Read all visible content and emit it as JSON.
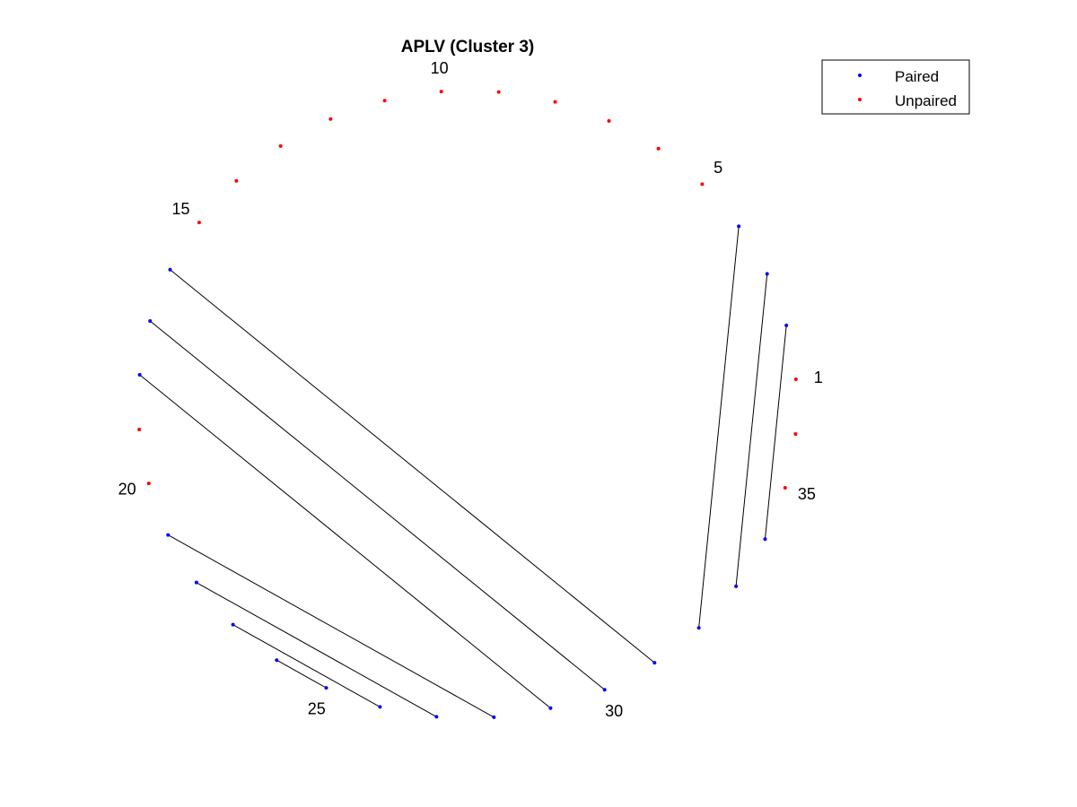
{
  "title": "APLV (Cluster 3)",
  "legend": {
    "placement": "top-right",
    "items": [
      {
        "label": "Paired",
        "color": "#0000ff"
      },
      {
        "label": "Unpaired",
        "color": "#ff0000"
      }
    ]
  },
  "chart_data": {
    "type": "circular-pairing",
    "n_points": 36,
    "labeled_positions": [
      1,
      5,
      10,
      15,
      20,
      25,
      30,
      35
    ],
    "pairs": [
      [
        2,
        34
      ],
      [
        3,
        33
      ],
      [
        4,
        32
      ],
      [
        16,
        31
      ],
      [
        17,
        30
      ],
      [
        18,
        29
      ],
      [
        21,
        28
      ],
      [
        22,
        27
      ],
      [
        23,
        26
      ],
      [
        24,
        25
      ]
    ]
  },
  "colors": {
    "paired": "#0000ff",
    "unpaired": "#ff0000",
    "line": "#000000"
  }
}
